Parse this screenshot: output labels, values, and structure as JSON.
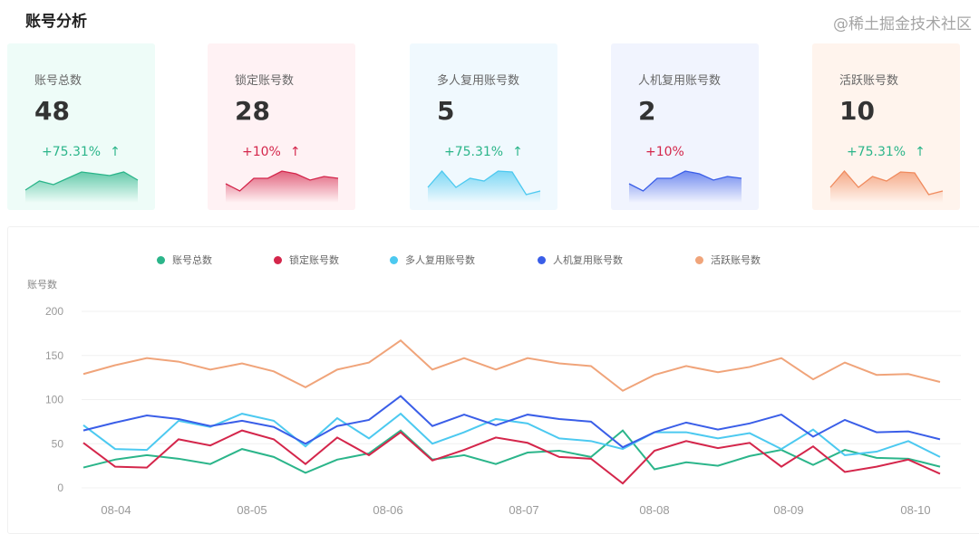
{
  "header": {
    "title": "账号分析"
  },
  "cards": [
    {
      "label": "账号总数",
      "value": "48",
      "change": "+75.31%",
      "arrow": "↑",
      "change_color": "#2bb58a",
      "color": "#2bb58a",
      "bg": "#eefcf8",
      "spark": [
        12,
        22,
        18,
        25,
        32,
        30,
        28,
        32,
        23
      ]
    },
    {
      "label": "锁定账号数",
      "value": "28",
      "change": "+10%",
      "arrow": "↑",
      "change_color": "#d4264b",
      "color": "#d4264b",
      "bg": "#fff2f4",
      "spark": [
        19,
        11,
        25,
        25,
        33,
        30,
        23,
        27,
        25
      ]
    },
    {
      "label": "多人复用账号数",
      "value": "5",
      "change": "+75.31%",
      "arrow": "↑",
      "change_color": "#2bb58a",
      "color": "#4cc9f0",
      "bg": "#f0f9fe",
      "spark": [
        15,
        33,
        15,
        25,
        22,
        33,
        32,
        7,
        11
      ]
    },
    {
      "label": "人机复用账号数",
      "value": "2",
      "change": "+10%",
      "arrow": "",
      "change_color": "#d4264b",
      "color": "#3a5ee8",
      "bg": "#f1f4fe",
      "spark": [
        19,
        11,
        25,
        25,
        33,
        30,
        23,
        27,
        25
      ]
    },
    {
      "label": "活跃账号数",
      "value": "10",
      "change": "+75.31%",
      "arrow": "↑",
      "change_color": "#2bb58a",
      "color": "#f08a5d",
      "bg": "#fff4ed",
      "spark": [
        15,
        33,
        15,
        27,
        22,
        32,
        31,
        7,
        11
      ]
    }
  ],
  "chart_data": {
    "type": "line",
    "ylabel": "账号数",
    "ylim": [
      0,
      200
    ],
    "yticks": [
      0,
      50,
      100,
      150,
      200
    ],
    "xticks": [
      "08-04",
      "08-05",
      "08-06",
      "08-07",
      "08-08",
      "08-09",
      "08-10"
    ],
    "grid": true,
    "legend": "top",
    "series": [
      {
        "name": "账号总数",
        "color": "#2bb58a",
        "values": [
          23,
          32,
          37,
          33,
          27,
          44,
          35,
          17,
          32,
          39,
          65,
          32,
          37,
          27,
          40,
          42,
          35,
          65,
          21,
          29,
          25,
          36,
          43,
          26,
          43,
          34,
          33,
          24
        ]
      },
      {
        "name": "锁定账号数",
        "color": "#d4264b",
        "values": [
          51,
          24,
          23,
          55,
          48,
          65,
          55,
          27,
          57,
          37,
          63,
          31,
          43,
          57,
          51,
          35,
          33,
          5,
          42,
          53,
          45,
          51,
          24,
          47,
          18,
          24,
          32,
          16
        ]
      },
      {
        "name": "多人复用账号数",
        "color": "#4cc9f0",
        "values": [
          71,
          44,
          43,
          76,
          69,
          84,
          76,
          47,
          79,
          56,
          84,
          50,
          63,
          78,
          73,
          56,
          53,
          44,
          63,
          63,
          56,
          62,
          44,
          66,
          37,
          41,
          53,
          35
        ]
      },
      {
        "name": "人机复用账号数",
        "color": "#3a5ee8",
        "values": [
          65,
          74,
          82,
          78,
          70,
          76,
          69,
          50,
          70,
          77,
          104,
          70,
          83,
          71,
          83,
          78,
          75,
          46,
          63,
          74,
          66,
          73,
          83,
          58,
          77,
          63,
          64,
          55
        ]
      },
      {
        "name": "活跃账号数",
        "color": "#f0a47a",
        "values": [
          129,
          139,
          147,
          143,
          134,
          141,
          132,
          114,
          134,
          142,
          167,
          134,
          147,
          134,
          147,
          141,
          138,
          110,
          128,
          138,
          131,
          137,
          147,
          123,
          142,
          128,
          129,
          120
        ]
      }
    ]
  },
  "watermark": "@稀土掘金技术社区"
}
